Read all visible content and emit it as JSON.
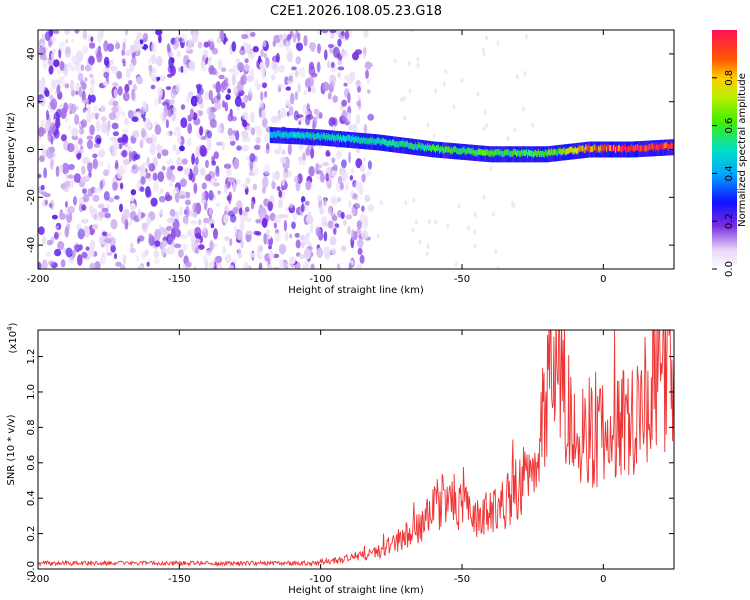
{
  "title": "C2E1.2026.108.05.23.G18",
  "chart_data": [
    {
      "type": "heatmap",
      "xlabel": "Height of straight line (km)",
      "ylabel": "Frequency (Hz)",
      "xlim": [
        -200,
        25
      ],
      "ylim": [
        -50,
        50
      ],
      "xticks": [
        -200,
        -150,
        -100,
        -50,
        0
      ],
      "yticks": [
        -40,
        -20,
        0,
        20,
        40
      ],
      "colorbar": {
        "label": "Normalized spectral amplitude",
        "range": [
          0.0,
          1.0
        ],
        "ticks": [
          "0.0",
          "0.2",
          "0.4",
          "0.6",
          "0.8"
        ]
      },
      "description_points": {
        "noise_region_x": [
          -200,
          -85
        ],
        "signal_trace": [
          {
            "x": -117,
            "freq": 6,
            "amp": 0.45
          },
          {
            "x": -100,
            "freq": 5,
            "amp": 0.5
          },
          {
            "x": -80,
            "freq": 3,
            "amp": 0.5
          },
          {
            "x": -60,
            "freq": 0,
            "amp": 0.55
          },
          {
            "x": -40,
            "freq": -2,
            "amp": 0.6
          },
          {
            "x": -20,
            "freq": -2,
            "amp": 0.6
          },
          {
            "x": -5,
            "freq": 0,
            "amp": 0.85
          },
          {
            "x": 10,
            "freq": 0,
            "amp": 0.95
          },
          {
            "x": 25,
            "freq": 1,
            "amp": 0.95
          }
        ]
      }
    },
    {
      "type": "line",
      "xlabel": "Height of straight line (km)",
      "ylabel": "SNR (10 * v/v)",
      "y_multiplier": "(x10",
      "y_multiplier_exp": "4",
      "y_multiplier_close": ")",
      "xlim": [
        -200,
        25
      ],
      "ylim": [
        0.0,
        1.35
      ],
      "xticks": [
        -200,
        -150,
        -100,
        -50,
        0
      ],
      "yticks": [
        "0.0",
        "0.2",
        "0.4",
        "0.6",
        "0.8",
        "1.0",
        "1.2"
      ],
      "color": "#ee3333",
      "envelope": [
        {
          "x": -200,
          "y": 0.03
        },
        {
          "x": -110,
          "y": 0.03
        },
        {
          "x": -95,
          "y": 0.05
        },
        {
          "x": -80,
          "y": 0.1
        },
        {
          "x": -65,
          "y": 0.25
        },
        {
          "x": -55,
          "y": 0.45
        },
        {
          "x": -45,
          "y": 0.3
        },
        {
          "x": -35,
          "y": 0.4
        },
        {
          "x": -25,
          "y": 0.6
        },
        {
          "x": -18,
          "y": 1.3
        },
        {
          "x": -10,
          "y": 0.85
        },
        {
          "x": 0,
          "y": 0.8
        },
        {
          "x": 8,
          "y": 0.9
        },
        {
          "x": 15,
          "y": 1.05
        },
        {
          "x": 22,
          "y": 1.2
        },
        {
          "x": 25,
          "y": 1.15
        }
      ]
    }
  ]
}
